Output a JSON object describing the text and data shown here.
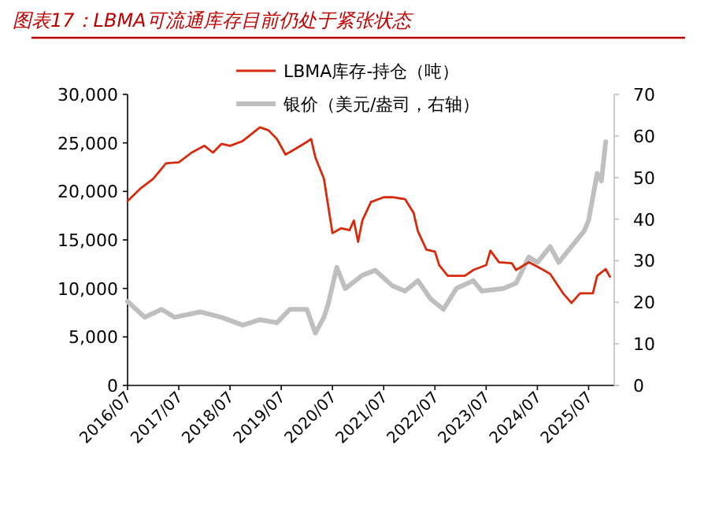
{
  "chart_data": {
    "type": "line",
    "title": "图表17：LBMA可流通库存目前仍处于紧张状态",
    "xlim": [
      "2016-07",
      "2026-01"
    ],
    "xticks": [
      {
        "value": "2016-07",
        "label": "2016/07"
      },
      {
        "value": "2017-07",
        "label": "2017/07"
      },
      {
        "value": "2018-07",
        "label": "2018/07"
      },
      {
        "value": "2019-07",
        "label": "2019/07"
      },
      {
        "value": "2020-07",
        "label": "2020/07"
      },
      {
        "value": "2021-07",
        "label": "2021/07"
      },
      {
        "value": "2022-07",
        "label": "2022/07"
      },
      {
        "value": "2023-07",
        "label": "2023/07"
      },
      {
        "value": "2024-07",
        "label": "2024/07"
      },
      {
        "value": "2025-07",
        "label": "2025/07"
      }
    ],
    "ylim": [
      0,
      30000
    ],
    "yticks": [
      0,
      {
        "value": 5000,
        "label": "5,000"
      },
      {
        "value": 10000,
        "label": "10,000"
      },
      {
        "value": 15000,
        "label": "15,000"
      },
      {
        "value": 20000,
        "label": "20,000"
      },
      {
        "value": 25000,
        "label": "25,000"
      },
      {
        "value": 30000,
        "label": "30,000"
      }
    ],
    "y2lim": [
      0,
      70
    ],
    "y2ticks": [
      0,
      10,
      20,
      30,
      40,
      50,
      60,
      70
    ],
    "legend": "top",
    "series": [
      {
        "name": "LBMA库存-持仓（吨）",
        "color": "#d62a0c",
        "x": [
          "2016-07",
          "2016-10",
          "2017-01",
          "2017-04",
          "2017-07",
          "2017-10",
          "2018-01",
          "2018-03",
          "2018-05",
          "2018-07",
          "2018-10",
          "2019-02",
          "2019-04",
          "2019-06",
          "2019-08",
          "2019-10",
          "2020-01",
          "2020-02",
          "2020-03",
          "2020-05",
          "2020-07",
          "2020-09",
          "2020-11",
          "2020-12",
          "2021-01",
          "2021-02",
          "2021-04",
          "2021-07",
          "2021-09",
          "2021-12",
          "2022-02",
          "2022-03",
          "2022-05",
          "2022-07",
          "2022-08",
          "2022-10",
          "2023-02",
          "2023-04",
          "2023-07",
          "2023-08",
          "2023-10",
          "2024-01",
          "2024-02",
          "2024-05",
          "2024-08",
          "2024-10",
          "2025-01",
          "2025-03",
          "2025-05",
          "2025-08",
          "2025-09",
          "2025-11",
          "2025-12"
        ],
        "values": [
          19000,
          20300,
          21300,
          22900,
          23000,
          24000,
          24700,
          24000,
          24900,
          24700,
          25200,
          26600,
          26300,
          25400,
          23800,
          24300,
          25100,
          25400,
          23500,
          21300,
          15700,
          16200,
          16000,
          17000,
          14800,
          17000,
          18900,
          19400,
          19400,
          19200,
          17800,
          15900,
          14000,
          13800,
          12400,
          11300,
          11300,
          11900,
          12400,
          13900,
          12700,
          12600,
          11900,
          12700,
          12000,
          11500,
          9500,
          8500,
          9500,
          9500,
          11300,
          12000,
          11200
        ]
      },
      {
        "name": "银价（美元/盎司，右轴）",
        "color": "#bfbfbf",
        "axis": "y2",
        "x": [
          "2016-07",
          "2016-11",
          "2017-03",
          "2017-06",
          "2017-12",
          "2018-05",
          "2018-10",
          "2019-02",
          "2019-06",
          "2019-09",
          "2020-01",
          "2020-03",
          "2020-05",
          "2020-06",
          "2020-08",
          "2020-10",
          "2021-02",
          "2021-05",
          "2021-09",
          "2021-12",
          "2022-03",
          "2022-06",
          "2022-09",
          "2022-12",
          "2023-04",
          "2023-06",
          "2023-11",
          "2024-02",
          "2024-05",
          "2024-07",
          "2024-10",
          "2024-12",
          "2025-03",
          "2025-06",
          "2025-07",
          "2025-09",
          "2025-10",
          "2025-11"
        ],
        "values": [
          20.2,
          16.4,
          18.3,
          16.4,
          17.7,
          16.4,
          14.5,
          15.8,
          15.1,
          18.3,
          18.3,
          12.6,
          16.4,
          19.6,
          28.4,
          23.3,
          26.5,
          27.7,
          24,
          22.7,
          25.2,
          20.8,
          18.3,
          23.3,
          25.2,
          22.7,
          23.3,
          24.6,
          30.9,
          29.6,
          33.4,
          29.6,
          33.4,
          37.2,
          39.7,
          51,
          49.2,
          58.6
        ]
      }
    ]
  }
}
